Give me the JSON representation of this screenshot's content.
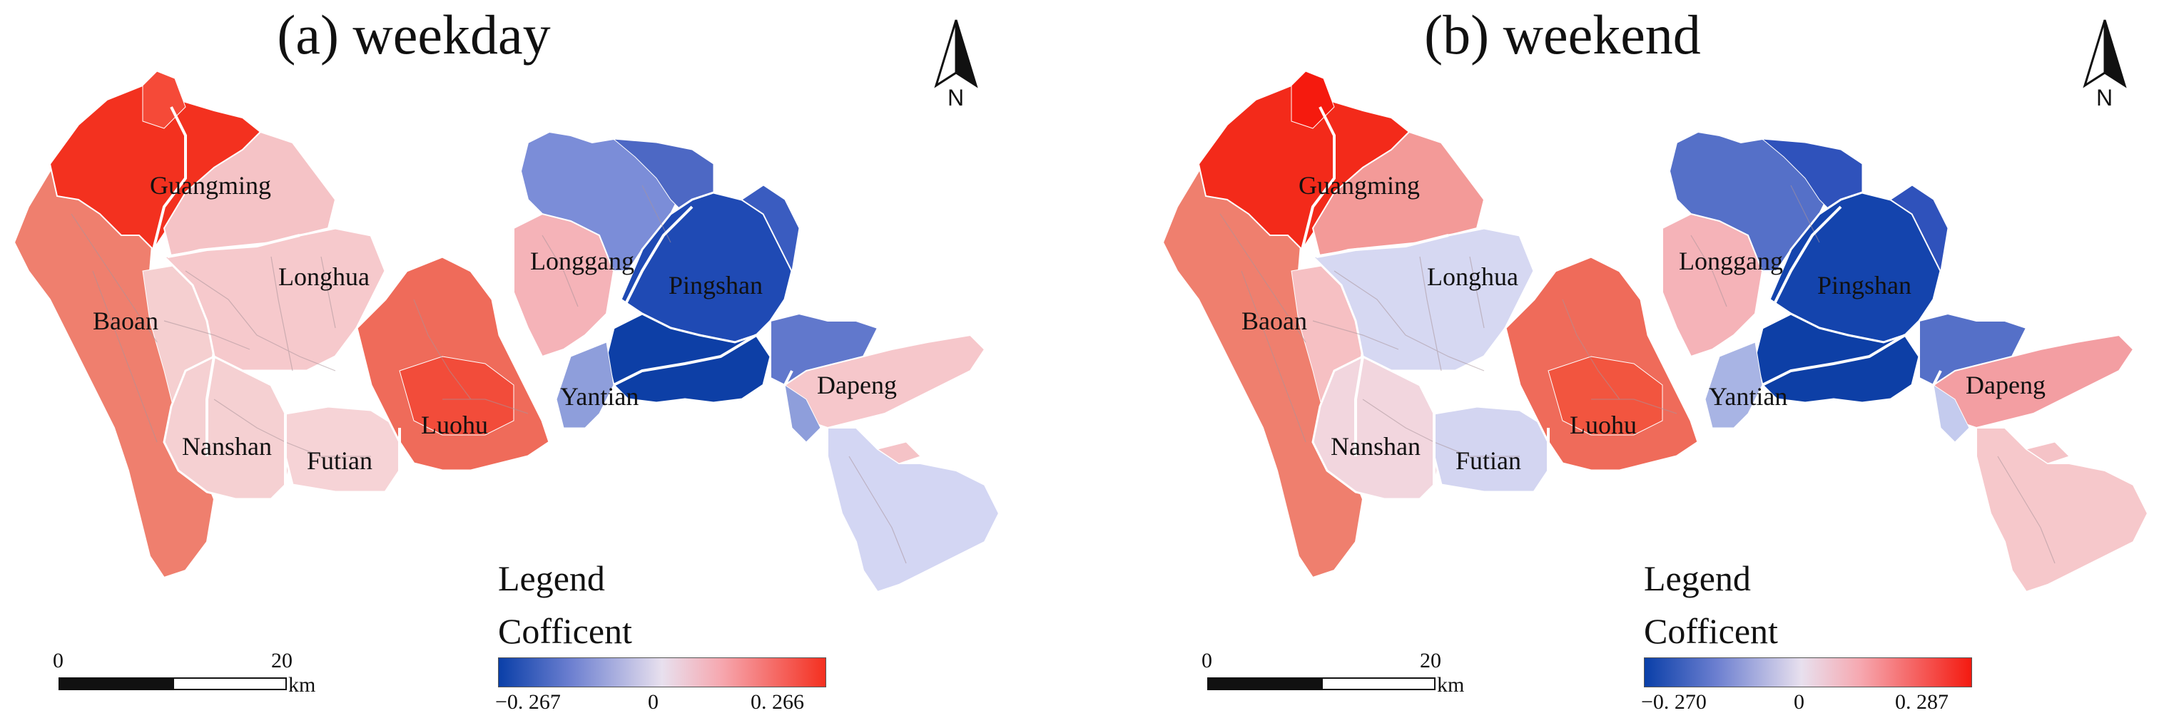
{
  "panels": [
    {
      "title": "(a) weekday",
      "north_label": "N",
      "legend": {
        "title": "Legend",
        "subtitle": "Cofficent",
        "min": "−0. 267",
        "mid": "0",
        "max": "0. 266"
      },
      "scale": {
        "zero": "0",
        "max": "20",
        "unit": "km"
      },
      "districts": [
        {
          "name": "Guangming",
          "coefficient_level": "high-positive"
        },
        {
          "name": "Baoan",
          "coefficient_level": "positive"
        },
        {
          "name": "Longhua",
          "coefficient_level": "slight-positive"
        },
        {
          "name": "Nanshan",
          "coefficient_level": "slight-positive"
        },
        {
          "name": "Futian",
          "coefficient_level": "slight-positive"
        },
        {
          "name": "Luohu",
          "coefficient_level": "positive"
        },
        {
          "name": "Longgang",
          "coefficient_level": "mixed"
        },
        {
          "name": "Pingshan",
          "coefficient_level": "strong-negative"
        },
        {
          "name": "Yantian",
          "coefficient_level": "negative"
        },
        {
          "name": "Dapeng",
          "coefficient_level": "slight-positive"
        }
      ]
    },
    {
      "title": "(b) weekend",
      "north_label": "N",
      "legend": {
        "title": "Legend",
        "subtitle": "Cofficent",
        "min": "−0. 270",
        "mid": "0",
        "max": "0. 287"
      },
      "scale": {
        "zero": "0",
        "max": "20",
        "unit": "km"
      },
      "districts": [
        {
          "name": "Guangming",
          "coefficient_level": "high-positive"
        },
        {
          "name": "Baoan",
          "coefficient_level": "positive"
        },
        {
          "name": "Longhua",
          "coefficient_level": "slight-negative"
        },
        {
          "name": "Nanshan",
          "coefficient_level": "slight-negative"
        },
        {
          "name": "Futian",
          "coefficient_level": "slight-negative"
        },
        {
          "name": "Luohu",
          "coefficient_level": "positive"
        },
        {
          "name": "Longgang",
          "coefficient_level": "mixed"
        },
        {
          "name": "Pingshan",
          "coefficient_level": "strong-negative"
        },
        {
          "name": "Yantian",
          "coefficient_level": "negative"
        },
        {
          "name": "Dapeng",
          "coefficient_level": "slight-positive"
        }
      ]
    }
  ],
  "colors": {
    "strong_negative": "#0a3fa8",
    "negative": "#4c6cc8",
    "slight_negative": "#d4d6f2",
    "neutral": "#f4dce4",
    "slight_positive": "#f6c2c6",
    "positive": "#ef7264",
    "high_positive": "#f31e12"
  }
}
